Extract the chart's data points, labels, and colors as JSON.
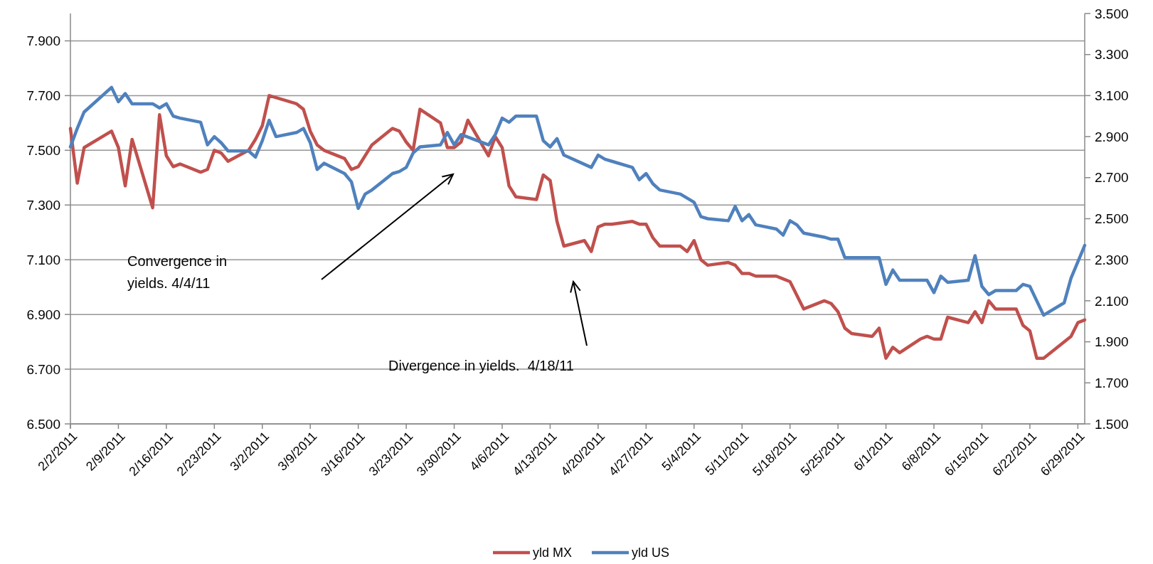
{
  "chart_data": {
    "type": "line",
    "annotations": [
      "Convergence in yields. 4/4/11",
      "Divergence in yields.  4/18/11"
    ],
    "xlim": [
      "2011-02-02",
      "2011-06-30"
    ],
    "xticks": [
      {
        "value": "2011-02-02",
        "label": "2/2/2011"
      },
      {
        "value": "2011-02-09",
        "label": "2/9/2011"
      },
      {
        "value": "2011-02-16",
        "label": "2/16/2011"
      },
      {
        "value": "2011-02-23",
        "label": "2/23/2011"
      },
      {
        "value": "2011-03-02",
        "label": "3/2/2011"
      },
      {
        "value": "2011-03-09",
        "label": "3/9/2011"
      },
      {
        "value": "2011-03-16",
        "label": "3/16/2011"
      },
      {
        "value": "2011-03-23",
        "label": "3/23/2011"
      },
      {
        "value": "2011-03-30",
        "label": "3/30/2011"
      },
      {
        "value": "2011-04-06",
        "label": "4/6/2011"
      },
      {
        "value": "2011-04-13",
        "label": "4/13/2011"
      },
      {
        "value": "2011-04-20",
        "label": "4/20/2011"
      },
      {
        "value": "2011-04-27",
        "label": "4/27/2011"
      },
      {
        "value": "2011-05-04",
        "label": "5/4/2011"
      },
      {
        "value": "2011-05-11",
        "label": "5/11/2011"
      },
      {
        "value": "2011-05-18",
        "label": "5/18/2011"
      },
      {
        "value": "2011-05-25",
        "label": "5/25/2011"
      },
      {
        "value": "2011-06-01",
        "label": "6/1/2011"
      },
      {
        "value": "2011-06-08",
        "label": "6/8/2011"
      },
      {
        "value": "2011-06-15",
        "label": "6/15/2011"
      },
      {
        "value": "2011-06-22",
        "label": "6/22/2011"
      },
      {
        "value": "2011-06-29",
        "label": "6/29/2011"
      }
    ],
    "ylim": [
      6.5,
      8.0
    ],
    "yticks": [
      {
        "value": 6.5,
        "label": "6.500"
      },
      {
        "value": 6.7,
        "label": "6.700"
      },
      {
        "value": 6.9,
        "label": "6.900"
      },
      {
        "value": 7.1,
        "label": "7.100"
      },
      {
        "value": 7.3,
        "label": "7.300"
      },
      {
        "value": 7.5,
        "label": "7.500"
      },
      {
        "value": 7.7,
        "label": "7.700"
      },
      {
        "value": 7.9,
        "label": "7.900"
      }
    ],
    "y2lim": [
      1.5,
      3.5
    ],
    "y2ticks": [
      {
        "value": 1.5,
        "label": "1.500"
      },
      {
        "value": 1.7,
        "label": "1.700"
      },
      {
        "value": 1.9,
        "label": "1.900"
      },
      {
        "value": 2.1,
        "label": "2.100"
      },
      {
        "value": 2.3,
        "label": "2.300"
      },
      {
        "value": 2.5,
        "label": "2.500"
      },
      {
        "value": 2.7,
        "label": "2.700"
      },
      {
        "value": 2.9,
        "label": "2.900"
      },
      {
        "value": 3.1,
        "label": "3.100"
      },
      {
        "value": 3.3,
        "label": "3.300"
      },
      {
        "value": 3.5,
        "label": "3.500"
      }
    ],
    "grid": "y",
    "legend": "bottom",
    "series": [
      {
        "name": "yld MX",
        "color": "#c0504d",
        "x": [
          "2011-02-02",
          "2011-02-03",
          "2011-02-04",
          "2011-02-08",
          "2011-02-09",
          "2011-02-10",
          "2011-02-11",
          "2011-02-14",
          "2011-02-15",
          "2011-02-16",
          "2011-02-17",
          "2011-02-18",
          "2011-02-21",
          "2011-02-22",
          "2011-02-23",
          "2011-02-24",
          "2011-02-25",
          "2011-02-28",
          "2011-03-01",
          "2011-03-02",
          "2011-03-03",
          "2011-03-07",
          "2011-03-08",
          "2011-03-09",
          "2011-03-10",
          "2011-03-11",
          "2011-03-14",
          "2011-03-15",
          "2011-03-16",
          "2011-03-18",
          "2011-03-21",
          "2011-03-22",
          "2011-03-23",
          "2011-03-24",
          "2011-03-25",
          "2011-03-28",
          "2011-03-29",
          "2011-03-30",
          "2011-03-31",
          "2011-04-01",
          "2011-04-04",
          "2011-04-05",
          "2011-04-06",
          "2011-04-07",
          "2011-04-08",
          "2011-04-11",
          "2011-04-12",
          "2011-04-13",
          "2011-04-14",
          "2011-04-15",
          "2011-04-18",
          "2011-04-19",
          "2011-04-20",
          "2011-04-21",
          "2011-04-22",
          "2011-04-25",
          "2011-04-26",
          "2011-04-27",
          "2011-04-28",
          "2011-04-29",
          "2011-05-02",
          "2011-05-03",
          "2011-05-04",
          "2011-05-05",
          "2011-05-06",
          "2011-05-09",
          "2011-05-10",
          "2011-05-11",
          "2011-05-12",
          "2011-05-13",
          "2011-05-16",
          "2011-05-17",
          "2011-05-18",
          "2011-05-20",
          "2011-05-23",
          "2011-05-24",
          "2011-05-25",
          "2011-05-26",
          "2011-05-27",
          "2011-05-30",
          "2011-05-31",
          "2011-06-01",
          "2011-06-02",
          "2011-06-03",
          "2011-06-06",
          "2011-06-07",
          "2011-06-08",
          "2011-06-09",
          "2011-06-10",
          "2011-06-13",
          "2011-06-14",
          "2011-06-15",
          "2011-06-16",
          "2011-06-17",
          "2011-06-20",
          "2011-06-21",
          "2011-06-22",
          "2011-06-23",
          "2011-06-24",
          "2011-06-28",
          "2011-06-29",
          "2011-06-30"
        ],
        "values": [
          7.58,
          7.38,
          7.51,
          7.57,
          7.51,
          7.37,
          7.54,
          7.29,
          7.63,
          7.48,
          7.44,
          7.45,
          7.42,
          7.43,
          7.5,
          7.49,
          7.46,
          7.5,
          7.54,
          7.59,
          7.7,
          7.67,
          7.65,
          7.57,
          7.52,
          7.5,
          7.47,
          7.43,
          7.44,
          7.52,
          7.58,
          7.57,
          7.53,
          7.5,
          7.65,
          7.6,
          7.51,
          7.51,
          7.53,
          7.61,
          7.48,
          7.55,
          7.51,
          7.37,
          7.33,
          7.32,
          7.41,
          7.39,
          7.24,
          7.15,
          7.17,
          7.13,
          7.22,
          7.23,
          7.23,
          7.24,
          7.23,
          7.23,
          7.18,
          7.15,
          7.15,
          7.13,
          7.17,
          7.1,
          7.08,
          7.09,
          7.08,
          7.05,
          7.05,
          7.04,
          7.04,
          7.03,
          7.02,
          6.92,
          6.95,
          6.94,
          6.91,
          6.85,
          6.83,
          6.82,
          6.85,
          6.74,
          6.78,
          6.76,
          6.81,
          6.82,
          6.81,
          6.81,
          6.89,
          6.87,
          6.91,
          6.87,
          6.95,
          6.92,
          6.92,
          6.86,
          6.84,
          6.74,
          6.74,
          6.82,
          6.87,
          6.88
        ]
      },
      {
        "name": "yld US",
        "color": "#4f81bd",
        "axis": "y2",
        "x": [
          "2011-02-02",
          "2011-02-03",
          "2011-02-04",
          "2011-02-08",
          "2011-02-09",
          "2011-02-10",
          "2011-02-11",
          "2011-02-14",
          "2011-02-15",
          "2011-02-16",
          "2011-02-17",
          "2011-02-18",
          "2011-02-21",
          "2011-02-22",
          "2011-02-23",
          "2011-02-24",
          "2011-02-25",
          "2011-02-28",
          "2011-03-01",
          "2011-03-02",
          "2011-03-03",
          "2011-03-04",
          "2011-03-07",
          "2011-03-08",
          "2011-03-09",
          "2011-03-10",
          "2011-03-11",
          "2011-03-14",
          "2011-03-15",
          "2011-03-16",
          "2011-03-17",
          "2011-03-18",
          "2011-03-21",
          "2011-03-22",
          "2011-03-23",
          "2011-03-24",
          "2011-03-25",
          "2011-03-28",
          "2011-03-29",
          "2011-03-30",
          "2011-03-31",
          "2011-04-04",
          "2011-04-05",
          "2011-04-06",
          "2011-04-07",
          "2011-04-08",
          "2011-04-11",
          "2011-04-12",
          "2011-04-13",
          "2011-04-14",
          "2011-04-15",
          "2011-04-19",
          "2011-04-20",
          "2011-04-21",
          "2011-04-22",
          "2011-04-25",
          "2011-04-26",
          "2011-04-27",
          "2011-04-28",
          "2011-04-29",
          "2011-05-02",
          "2011-05-03",
          "2011-05-04",
          "2011-05-05",
          "2011-05-06",
          "2011-05-09",
          "2011-05-10",
          "2011-05-11",
          "2011-05-12",
          "2011-05-13",
          "2011-05-16",
          "2011-05-17",
          "2011-05-18",
          "2011-05-19",
          "2011-05-20",
          "2011-05-23",
          "2011-05-24",
          "2011-05-25",
          "2011-05-26",
          "2011-05-30",
          "2011-05-31",
          "2011-06-01",
          "2011-06-02",
          "2011-06-03",
          "2011-06-06",
          "2011-06-07",
          "2011-06-08",
          "2011-06-09",
          "2011-06-10",
          "2011-06-13",
          "2011-06-14",
          "2011-06-15",
          "2011-06-16",
          "2011-06-17",
          "2011-06-20",
          "2011-06-21",
          "2011-06-22",
          "2011-06-24",
          "2011-06-27",
          "2011-06-28",
          "2011-06-30"
        ],
        "values": [
          2.85,
          2.94,
          3.02,
          3.14,
          3.07,
          3.11,
          3.06,
          3.06,
          3.04,
          3.06,
          3.0,
          2.99,
          2.97,
          2.86,
          2.9,
          2.87,
          2.83,
          2.83,
          2.8,
          2.88,
          2.98,
          2.9,
          2.92,
          2.94,
          2.87,
          2.74,
          2.77,
          2.72,
          2.68,
          2.55,
          2.62,
          2.64,
          2.72,
          2.73,
          2.75,
          2.82,
          2.85,
          2.86,
          2.92,
          2.86,
          2.91,
          2.86,
          2.91,
          2.99,
          2.97,
          3.0,
          3.0,
          2.88,
          2.85,
          2.89,
          2.81,
          2.75,
          2.81,
          2.79,
          2.78,
          2.75,
          2.69,
          2.72,
          2.67,
          2.64,
          2.62,
          2.6,
          2.58,
          2.51,
          2.5,
          2.49,
          2.56,
          2.49,
          2.52,
          2.47,
          2.45,
          2.42,
          2.49,
          2.47,
          2.43,
          2.41,
          2.4,
          2.4,
          2.31,
          2.31,
          2.31,
          2.18,
          2.25,
          2.2,
          2.2,
          2.2,
          2.14,
          2.22,
          2.19,
          2.2,
          2.32,
          2.17,
          2.13,
          2.15,
          2.15,
          2.18,
          2.17,
          2.03,
          2.09,
          2.21,
          2.37
        ]
      }
    ]
  }
}
